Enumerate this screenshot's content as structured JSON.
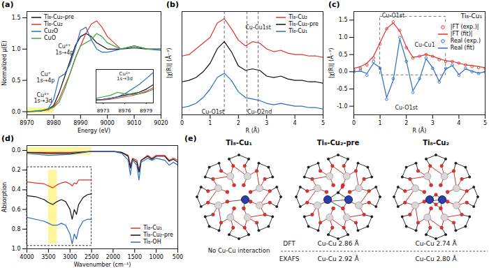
{
  "chart_data": [
    {
      "panel": "(a)",
      "type": "line",
      "x": [
        8970,
        8975,
        8978,
        8980,
        8982,
        8984,
        8986,
        8988,
        8990,
        8992,
        8994,
        8996,
        8998,
        9000,
        9005,
        9010,
        9015,
        9020
      ],
      "series": [
        {
          "name": "Ti₈-Cu₂-pre",
          "color": "#111111",
          "values": [
            0,
            0.01,
            0.04,
            0.1,
            0.3,
            0.55,
            0.8,
            1.05,
            1.2,
            1.25,
            1.2,
            1.1,
            1.05,
            1.0,
            1.0,
            1.02,
            1.0,
            1.0
          ]
        },
        {
          "name": "Ti₈-Cu₂",
          "color": "#e0342f",
          "values": [
            0,
            0.01,
            0.03,
            0.08,
            0.2,
            0.4,
            0.6,
            0.85,
            1.05,
            1.25,
            1.4,
            1.45,
            1.35,
            1.2,
            1.0,
            1.05,
            1.0,
            1.0
          ]
        },
        {
          "name": "Cu₂O",
          "color": "#2b6cc4",
          "values": [
            0,
            0.01,
            0.05,
            0.2,
            0.55,
            0.6,
            0.75,
            1.0,
            1.3,
            1.35,
            1.15,
            1.0,
            0.95,
            0.95,
            1.0,
            1.05,
            1.0,
            0.98
          ]
        },
        {
          "name": "CuO",
          "color": "#3aa63a",
          "values": [
            0,
            0.02,
            0.04,
            0.07,
            0.15,
            0.35,
            0.6,
            0.85,
            1.05,
            1.1,
            1.15,
            1.25,
            1.2,
            1.1,
            1.0,
            1.05,
            1.0,
            1.0
          ]
        }
      ],
      "xlim": [
        8970,
        9020
      ],
      "xticks": [
        8970,
        8980,
        8990,
        9000,
        9010,
        9020
      ],
      "ylim": [
        -0.05,
        1.6
      ],
      "yticks": [
        {
          "value": 0,
          "label": "0.0"
        },
        {
          "value": 0.5,
          "label": "0.5"
        },
        {
          "value": 1,
          "label": "1.0"
        },
        {
          "value": 1.5,
          "label": "1.5"
        }
      ],
      "x_label": "Energy (eV)",
      "y_label": "Normalized μ(E)",
      "legend": "top-left",
      "highlights": [
        {
          "x": [
            8970,
            8980
          ],
          "y": [
            -0.03,
            0.06
          ]
        }
      ],
      "annotations": [
        {
          "text": "Cu⁺\n1s→4p",
          "x": 8977,
          "y": 0.55
        },
        {
          "text": "Cu²⁺\n1s→4p",
          "x": 8984,
          "y": 1.0
        },
        {
          "text": "Cu²⁺\n1s→3d",
          "x": 8976,
          "y": 0.22
        }
      ],
      "inset": {
        "x": [
          8972,
          8973,
          8974,
          8975,
          8976,
          8977,
          8978,
          8979,
          8980
        ],
        "series": [
          {
            "name": "Ti₈-Cu₂-pre",
            "color": "#111111",
            "values": [
              0.01,
              0.012,
              0.015,
              0.02,
              0.025,
              0.03,
              0.035,
              0.045,
              0.06
            ]
          },
          {
            "name": "Ti₈-Cu₂",
            "color": "#e0342f",
            "values": [
              0.008,
              0.01,
              0.012,
              0.016,
              0.02,
              0.024,
              0.03,
              0.038,
              0.05
            ]
          },
          {
            "name": "Cu₂O",
            "color": "#2b6cc4",
            "values": [
              0.01,
              0.012,
              0.015,
              0.02,
              0.03,
              0.045,
              0.06,
              0.08,
              0.1
            ]
          },
          {
            "name": "CuO",
            "color": "#3aa63a",
            "values": [
              0.015,
              0.02,
              0.025,
              0.035,
              0.03,
              0.028,
              0.03,
              0.035,
              0.045
            ]
          }
        ],
        "xlim": [
          8972,
          8980
        ],
        "xticks": [
          8973,
          8976,
          8979
        ],
        "ylim": [
          0,
          0.11
        ],
        "tick_labels": "x",
        "annotations": [
          {
            "text": "Cu²⁺\n1s→3d",
            "x": 8976,
            "y": 0.088
          }
        ]
      }
    },
    {
      "panel": "(b)",
      "type": "line",
      "x": [
        0,
        0.25,
        0.5,
        0.75,
        1,
        1.25,
        1.5,
        1.75,
        2,
        2.25,
        2.5,
        2.75,
        3,
        3.25,
        3.5,
        3.75,
        4,
        4.25,
        4.5,
        4.75,
        5
      ],
      "series": [
        {
          "name": "Ti₈-Cu₂",
          "color": "#e0342f",
          "values": [
            2.05,
            2.1,
            2.3,
            2.5,
            2.7,
            3.2,
            3.35,
            3.0,
            2.6,
            2.4,
            2.55,
            2.5,
            2.3,
            2.2,
            2.25,
            2.15,
            2.1,
            2.1,
            2.05,
            2.05,
            2.0
          ]
        },
        {
          "name": "Ti₈-Cu₂-pre",
          "color": "#111111",
          "values": [
            1.15,
            1.2,
            1.3,
            1.5,
            1.8,
            2.3,
            2.55,
            2.2,
            1.7,
            1.55,
            1.6,
            1.55,
            1.35,
            1.3,
            1.35,
            1.25,
            1.2,
            1.2,
            1.15,
            1.15,
            1.1
          ]
        },
        {
          "name": "Ti₈-Cu₁",
          "color": "#2b6cc4",
          "values": [
            0.25,
            0.3,
            0.4,
            0.6,
            0.9,
            1.3,
            1.45,
            1.2,
            0.8,
            0.6,
            0.55,
            0.5,
            0.4,
            0.35,
            0.4,
            0.35,
            0.3,
            0.3,
            0.25,
            0.25,
            0.2
          ]
        }
      ],
      "xlim": [
        0,
        5
      ],
      "xticks": [
        0,
        1,
        2,
        3,
        4,
        5
      ],
      "ylim": [
        0,
        3.6
      ],
      "tick_labels": "x",
      "x_label": "R (Å)",
      "y_label": "|χ(R)| (Å⁻³)",
      "legend": "top-right",
      "vlines": [
        1.5,
        2.3,
        2.7
      ],
      "annotations": [
        {
          "text": "Cu-Cu1st",
          "x": 2.7,
          "y": 3.05
        },
        {
          "text": "Cu-O1st",
          "x": 1.1,
          "y": 0.1
        },
        {
          "text": "Cu-O2nd",
          "x": 2.75,
          "y": 0.1
        }
      ]
    },
    {
      "panel": "(c)",
      "type": "line",
      "title": "Ti₈-Cu₁",
      "x": [
        0,
        0.25,
        0.5,
        0.75,
        1,
        1.25,
        1.5,
        1.75,
        2,
        2.25,
        2.5,
        2.75,
        3,
        3.25,
        3.5,
        3.75,
        4,
        4.25,
        4.5,
        4.75,
        5
      ],
      "series": [
        {
          "name": "|FT (exp.)|",
          "color": "#e0342f",
          "type": "scatter",
          "marker": "circle",
          "values": [
            0.05,
            0.1,
            0.2,
            0.4,
            0.8,
            1.25,
            1.45,
            1.2,
            0.7,
            0.4,
            0.45,
            0.5,
            0.45,
            0.35,
            0.3,
            0.3,
            0.25,
            0.2,
            0.15,
            0.12,
            0.1
          ]
        },
        {
          "name": "|FT (fit)|",
          "color": "#e0342f",
          "type": "line",
          "values": [
            0.1,
            0.15,
            0.25,
            0.45,
            0.85,
            1.25,
            1.42,
            1.18,
            0.72,
            0.42,
            0.45,
            0.5,
            0.45,
            0.38,
            0.32,
            0.3,
            0.25,
            0.2,
            0.18,
            0.15,
            0.12
          ]
        },
        {
          "name": "Real (exp.)",
          "color": "#2b6cc4",
          "type": "scatter",
          "marker": "circle",
          "values": [
            0.0,
            0.05,
            -0.1,
            0.3,
            0.1,
            -0.8,
            -0.2,
            1.0,
            0.3,
            -0.6,
            -0.2,
            0.4,
            0.1,
            -0.3,
            0.1,
            0.2,
            -0.1,
            0.1,
            0.0,
            -0.05,
            0.0
          ]
        },
        {
          "name": "Real (fit)",
          "color": "#2b6cc4",
          "type": "line",
          "values": [
            0.0,
            0.02,
            -0.05,
            0.25,
            0.12,
            -0.75,
            -0.25,
            0.95,
            0.32,
            -0.55,
            -0.22,
            0.38,
            0.12,
            -0.28,
            0.08,
            0.18,
            -0.08,
            0.08,
            0.02,
            -0.04,
            0.0
          ]
        }
      ],
      "xlim": [
        0,
        5
      ],
      "xticks": [
        0,
        1,
        2,
        3,
        4,
        5
      ],
      "ylim": [
        -1.25,
        1.75
      ],
      "yticks": [
        {
          "value": -1,
          "label": "-1.0"
        },
        {
          "value": -0.5,
          "label": "-0.5"
        },
        {
          "value": 0,
          "label": "0.0"
        },
        {
          "value": 0.5,
          "label": "0.5"
        },
        {
          "value": 1,
          "label": "1.0"
        },
        {
          "value": 1.5,
          "label": "1.5"
        }
      ],
      "x_label": "R (Å)",
      "y_label": "|χ(R)| (Å⁻³)",
      "legend": "top-right",
      "fit_window": {
        "x": [
          1.0,
          3.5
        ],
        "y": [
          -0.1,
          1.6
        ]
      },
      "annotations": [
        {
          "text": "Cu-O1st",
          "x": 1.5,
          "y": 1.63
        },
        {
          "text": "Cu-Cu1st",
          "x": 2.8,
          "y": 0.78
        },
        {
          "text": "Cu-O1st",
          "x": 2.0,
          "y": -1.05
        }
      ]
    },
    {
      "panel": "(d)",
      "type": "line",
      "x": [
        4000,
        3500,
        3000,
        2500,
        2000,
        1800,
        1650,
        1600,
        1550,
        1450,
        1400,
        1350,
        1200,
        1100,
        1000,
        800,
        700,
        600,
        500
      ],
      "series": [
        {
          "name": "Ti₈-Cu₁",
          "color": "#e0342f",
          "values": [
            0.02,
            0.02,
            0.02,
            0.01,
            0.01,
            0.02,
            0.05,
            0.15,
            0.08,
            0.1,
            0.2,
            0.1,
            0.05,
            0.08,
            0.05,
            0.05,
            0.1,
            0.08,
            0.1
          ]
        },
        {
          "name": "Ti₈-Cu₂-pre",
          "color": "#111111",
          "values": [
            0.02,
            0.03,
            0.03,
            0.01,
            0.01,
            0.02,
            0.06,
            0.18,
            0.09,
            0.12,
            0.22,
            0.1,
            0.06,
            0.09,
            0.06,
            0.06,
            0.11,
            0.09,
            0.12
          ]
        },
        {
          "name": "Ti₈-OH",
          "color": "#2b6cc4",
          "values": [
            0.03,
            0.05,
            0.04,
            0.01,
            0.01,
            0.03,
            0.1,
            0.25,
            0.1,
            0.15,
            0.3,
            0.12,
            0.08,
            0.1,
            0.08,
            0.1,
            0.15,
            0.12,
            0.15
          ]
        }
      ],
      "xlim": [
        4000,
        500
      ],
      "xticks": [
        4000,
        3500,
        3000,
        2500,
        2000,
        1500,
        1000,
        500
      ],
      "ylim": [
        1.0,
        -0.05
      ],
      "yticks": [
        {
          "value": 0,
          "label": "0.0"
        },
        {
          "value": 0.2,
          "label": "0.2"
        },
        {
          "value": 0.4,
          "label": "0.4"
        },
        {
          "value": 0.6,
          "label": "0.6"
        },
        {
          "value": 0.8,
          "label": "0.8"
        },
        {
          "value": 1,
          "label": "1.0"
        }
      ],
      "x_label": "Wavenumber (cm⁻¹)",
      "y_label": "Absorption",
      "legend": "bottom-right",
      "highlights": [
        {
          "x": [
            4000,
            2500
          ],
          "y": [
            -0.03,
            0.05
          ]
        },
        {
          "x": [
            3500,
            3300
          ],
          "y": [
            0.2,
            0.95
          ]
        }
      ],
      "inset_box": {
        "x": [
          4000,
          2500
        ],
        "y": [
          0.17,
          0.97
        ]
      },
      "overlay": {
        "x": [
          4000,
          3800,
          3600,
          3500,
          3400,
          3300,
          3200,
          3100,
          3000,
          2950,
          2900,
          2850,
          2800,
          2700,
          2600,
          2500
        ],
        "series": [
          {
            "name": "Ti₈-Cu₁",
            "color": "#e0342f",
            "values": [
              0.32,
              0.33,
              0.34,
              0.36,
              0.38,
              0.35,
              0.33,
              0.32,
              0.34,
              0.36,
              0.33,
              0.34,
              0.3,
              0.3,
              0.3,
              0.3
            ]
          },
          {
            "name": "Ti₈-Cu₂-pre",
            "color": "#111111",
            "values": [
              0.46,
              0.47,
              0.5,
              0.53,
              0.55,
              0.52,
              0.5,
              0.52,
              0.6,
              0.7,
              0.6,
              0.65,
              0.55,
              0.48,
              0.45,
              0.44
            ]
          },
          {
            "name": "Ti₈-OH",
            "color": "#2b6cc4",
            "values": [
              0.68,
              0.7,
              0.72,
              0.74,
              0.76,
              0.76,
              0.74,
              0.76,
              0.85,
              0.95,
              0.85,
              0.9,
              0.8,
              0.72,
              0.7,
              0.7
            ]
          }
        ]
      }
    }
  ],
  "diagram": {
    "panel": "(e)",
    "structures": [
      {
        "title": "Ti₈-Cu₁",
        "note": "No Cu-Cu interaction"
      },
      {
        "title": "Ti₈-Cu₂-pre"
      },
      {
        "title": "Ti₈-Cu₂"
      }
    ],
    "table": [
      {
        "method": "DFT",
        "cells": [
          null,
          "Cu-Cu 2.86 Å",
          "Cu-Cu 2.74 Å"
        ]
      },
      {
        "method": "EXAFS",
        "cells": [
          null,
          "Cu-Cu 2.92 Å",
          "Cu-Cu 2.80 Å"
        ]
      }
    ]
  }
}
